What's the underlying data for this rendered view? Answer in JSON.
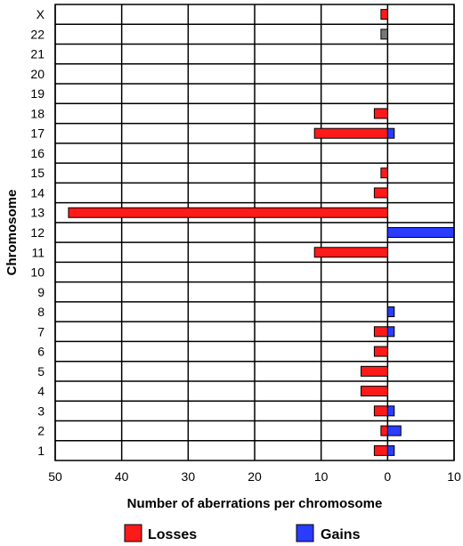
{
  "chart_data": {
    "type": "bar",
    "orientation": "horizontal",
    "title": "",
    "xlabel": "Number of aberrations per chromosome",
    "ylabel": "Chromosome",
    "xlim": [
      -50,
      10
    ],
    "x_tick_labels": [
      "50",
      "40",
      "30",
      "20",
      "10",
      "0",
      "10"
    ],
    "x_tick_values": [
      -50,
      -40,
      -30,
      -20,
      -10,
      0,
      10
    ],
    "grid": true,
    "legend_position": "bottom",
    "categories": [
      "1",
      "2",
      "3",
      "4",
      "5",
      "6",
      "7",
      "8",
      "9",
      "10",
      "11",
      "12",
      "13",
      "14",
      "15",
      "16",
      "17",
      "18",
      "19",
      "20",
      "21",
      "22",
      "X"
    ],
    "series": [
      {
        "name": "Losses",
        "color": "#ff1a1a",
        "values": [
          -2,
          -1,
          -2,
          -4,
          -4,
          -2,
          -2,
          0,
          0,
          0,
          -11,
          0,
          -48,
          -2,
          -1,
          0,
          -11,
          -2,
          0,
          0,
          0,
          0,
          -1
        ]
      },
      {
        "name": "Gains",
        "color": "#2a3cff",
        "values": [
          1,
          2,
          1,
          0,
          0,
          0,
          1,
          1,
          0,
          0,
          0,
          10,
          0,
          0,
          0,
          0,
          1,
          0,
          0,
          0,
          0,
          0,
          0
        ]
      }
    ],
    "other": {
      "color": "#777777",
      "values": [
        0,
        0,
        0,
        0,
        0,
        0,
        0,
        0,
        0,
        0,
        0,
        0,
        0,
        0,
        0,
        0,
        0,
        0,
        0,
        0,
        0,
        -1,
        0
      ]
    }
  }
}
